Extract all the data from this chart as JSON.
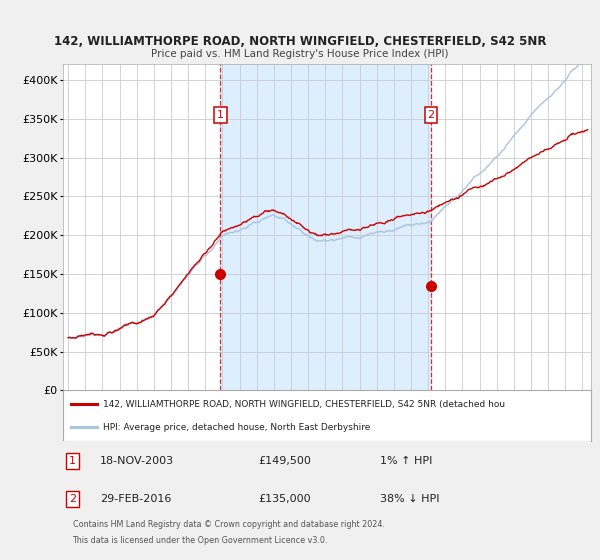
{
  "title1": "142, WILLIAMTHORPE ROAD, NORTH WINGFIELD, CHESTERFIELD, S42 5NR",
  "title2": "Price paid vs. HM Land Registry's House Price Index (HPI)",
  "ylim": [
    0,
    420000
  ],
  "yticks": [
    0,
    50000,
    100000,
    150000,
    200000,
    250000,
    300000,
    350000,
    400000
  ],
  "ytick_labels": [
    "£0",
    "£50K",
    "£100K",
    "£150K",
    "£200K",
    "£250K",
    "£300K",
    "£350K",
    "£400K"
  ],
  "xlim_start": 1994.7,
  "xlim_end": 2025.5,
  "hpi_color": "#a8c4e0",
  "price_color": "#cc0000",
  "sale1_date": 2003.88,
  "sale1_price": 149500,
  "sale1_label": "1",
  "sale2_date": 2016.16,
  "sale2_price": 135000,
  "sale2_label": "2",
  "legend_line1": "142, WILLIAMTHORPE ROAD, NORTH WINGFIELD, CHESTERFIELD, S42 5NR (detached hou",
  "legend_line2": "HPI: Average price, detached house, North East Derbyshire",
  "ann1_date": "18-NOV-2003",
  "ann1_price": "£149,500",
  "ann1_hpi": "1% ↑ HPI",
  "ann2_date": "29-FEB-2016",
  "ann2_price": "£135,000",
  "ann2_hpi": "38% ↓ HPI",
  "footer1": "Contains HM Land Registry data © Crown copyright and database right 2024.",
  "footer2": "This data is licensed under the Open Government Licence v3.0.",
  "bg_color": "#f0f0f0",
  "plot_bg_color": "#ffffff",
  "grid_color": "#cccccc",
  "span_color": "#ddeeff"
}
